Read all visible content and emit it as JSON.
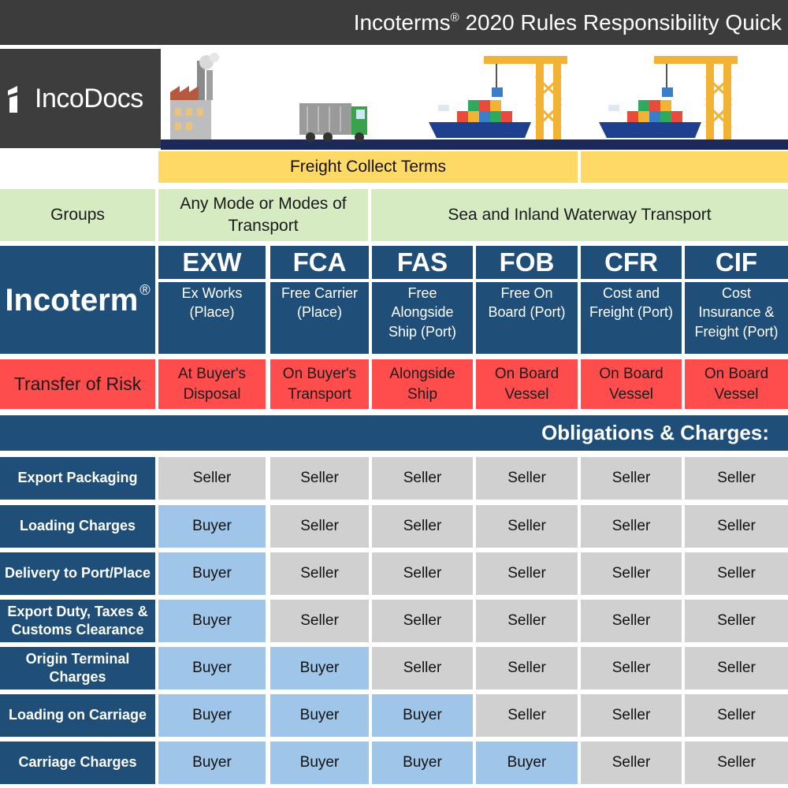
{
  "header": {
    "title": "Incoterms",
    "title_sup": "®",
    "title_rest": "2020 Rules Responsibility Quick"
  },
  "logo": {
    "text": "IncoDocs"
  },
  "freight_collect": "Freight Collect Terms",
  "groups": {
    "label": "Groups",
    "any_mode": "Any Mode or Modes of Transport",
    "sea": "Sea and Inland Waterway Transport"
  },
  "incoterm_label": "Incoterm",
  "incoterm_sup": "®",
  "terms": [
    {
      "code": "EXW",
      "name": "Ex Works (Place)",
      "risk": "At Buyer's Disposal"
    },
    {
      "code": "FCA",
      "name": "Free Carrier (Place)",
      "risk": "On Buyer's Transport"
    },
    {
      "code": "FAS",
      "name": "Free Alongside Ship (Port)",
      "risk": "Alongside Ship"
    },
    {
      "code": "FOB",
      "name": "Free On Board (Port)",
      "risk": "On Board Vessel"
    },
    {
      "code": "CFR",
      "name": "Cost and Freight (Port)",
      "risk": "On Board Vessel"
    },
    {
      "code": "CIF",
      "name": "Cost Insurance & Freight (Port)",
      "risk": "On Board Vessel"
    }
  ],
  "transfer_of_risk_label": "Transfer of Risk",
  "obligations_title": "Obligations & Charges:",
  "obligations": [
    {
      "label": "Export Packaging",
      "values": [
        "Seller",
        "Seller",
        "Seller",
        "Seller",
        "Seller",
        "Seller"
      ]
    },
    {
      "label": "Loading Charges",
      "values": [
        "Buyer",
        "Seller",
        "Seller",
        "Seller",
        "Seller",
        "Seller"
      ]
    },
    {
      "label": "Delivery to Port/Place",
      "values": [
        "Buyer",
        "Seller",
        "Seller",
        "Seller",
        "Seller",
        "Seller"
      ]
    },
    {
      "label": "Export Duty, Taxes & Customs Clearance",
      "values": [
        "Buyer",
        "Seller",
        "Seller",
        "Seller",
        "Seller",
        "Seller"
      ]
    },
    {
      "label": "Origin Terminal Charges",
      "values": [
        "Buyer",
        "Buyer",
        "Seller",
        "Seller",
        "Seller",
        "Seller"
      ]
    },
    {
      "label": "Loading on Carriage",
      "values": [
        "Buyer",
        "Buyer",
        "Buyer",
        "Seller",
        "Seller",
        "Seller"
      ]
    },
    {
      "label": "Carriage Charges",
      "values": [
        "Buyer",
        "Buyer",
        "Buyer",
        "Buyer",
        "Seller",
        "Seller"
      ]
    }
  ],
  "colors": {
    "navy": "#1f4e79",
    "seller_gray": "#d0d0d0",
    "buyer_blue": "#9fc5e8",
    "risk_red": "#ff4d4d",
    "group_green": "#d6ebc2",
    "freight_yellow": "#ffd966"
  },
  "illustration_icons": [
    "factory-icon",
    "truck-icon",
    "ship-icon",
    "crane-icon",
    "ship-icon",
    "crane-icon"
  ]
}
